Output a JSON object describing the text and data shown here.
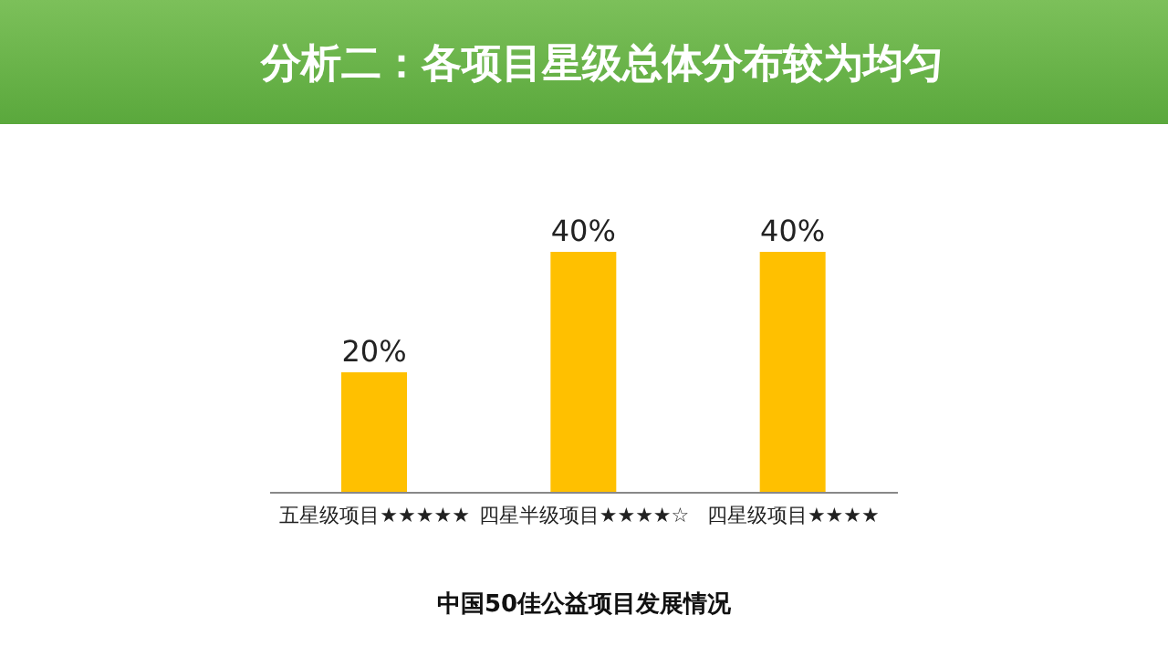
{
  "chart_data": {
    "type": "bar",
    "title": "分析二：各项目星级总体分布较为均匀",
    "xlabel": "中国50佳公益项目发展情况",
    "categories": [
      "五星级项目★★★★★",
      "四星半级项目★★★★☆",
      "四星级项目★★★★"
    ],
    "values": [
      20,
      40,
      40
    ],
    "value_labels": [
      "20%",
      "40%",
      "40%"
    ],
    "color": "#ffc000",
    "legend": false,
    "grid": false
  }
}
